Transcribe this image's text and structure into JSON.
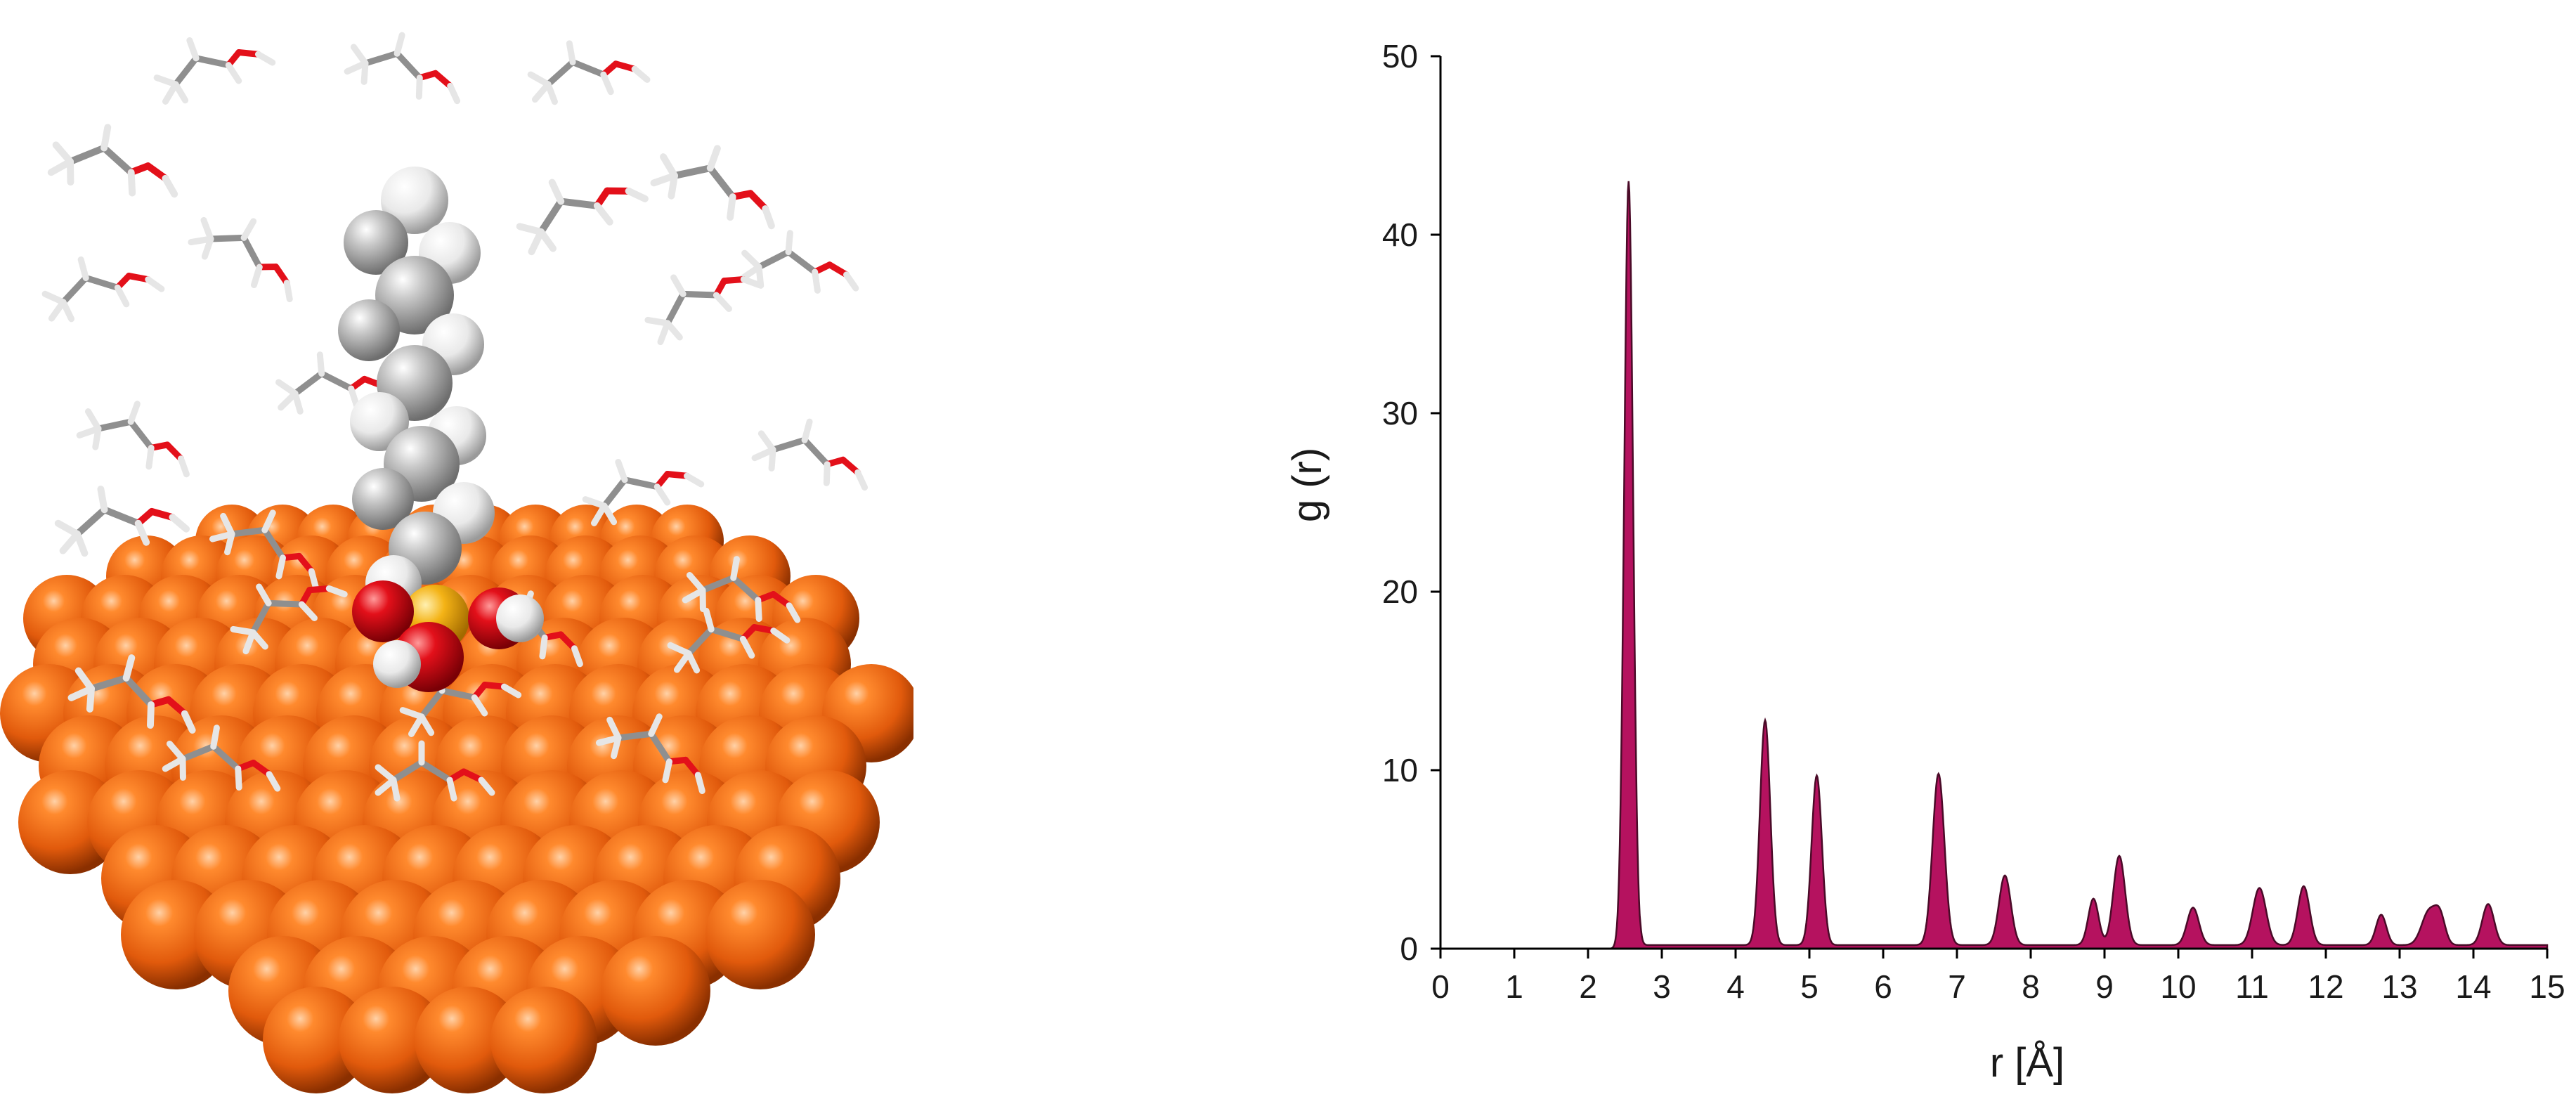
{
  "chart_data": {
    "type": "area",
    "xlabel": "r [Å]",
    "ylabel": "g (r)",
    "xlim": [
      0,
      15
    ],
    "ylim": [
      0,
      50
    ],
    "x_ticks": [
      "0",
      "1",
      "2",
      "3",
      "4",
      "5",
      "6",
      "7",
      "8",
      "9",
      "10",
      "11",
      "12",
      "13",
      "14",
      "15"
    ],
    "y_ticks": [
      "0",
      "10",
      "20",
      "30",
      "40",
      "50"
    ],
    "grid": false,
    "fill_color": "#b5125f",
    "line_color": "#4a0b28",
    "baseline_value": 0.2,
    "baseline_start": 2.7,
    "peaks": [
      {
        "r": 2.55,
        "g": 43.0,
        "w": 0.06
      },
      {
        "r": 4.4,
        "g": 12.6,
        "w": 0.07
      },
      {
        "r": 5.1,
        "g": 9.5,
        "w": 0.07
      },
      {
        "r": 6.75,
        "g": 9.6,
        "w": 0.08
      },
      {
        "r": 7.65,
        "g": 3.9,
        "w": 0.08
      },
      {
        "r": 8.85,
        "g": 2.6,
        "w": 0.07
      },
      {
        "r": 9.2,
        "g": 5.0,
        "w": 0.08
      },
      {
        "r": 10.2,
        "g": 2.1,
        "w": 0.08
      },
      {
        "r": 11.1,
        "g": 3.2,
        "w": 0.09
      },
      {
        "r": 11.7,
        "g": 3.3,
        "w": 0.08
      },
      {
        "r": 12.75,
        "g": 1.7,
        "w": 0.07
      },
      {
        "r": 13.4,
        "g": 1.9,
        "w": 0.1
      },
      {
        "r": 13.55,
        "g": 1.4,
        "w": 0.07
      },
      {
        "r": 14.2,
        "g": 2.3,
        "w": 0.08
      }
    ]
  },
  "molecule": {
    "surface_color": "#e8620f",
    "carbon_color": "#a8a8a8",
    "hydrogen_color": "#f0f0f0",
    "oxygen_color": "#e3101a",
    "sulfur_color": "#f4b316"
  }
}
